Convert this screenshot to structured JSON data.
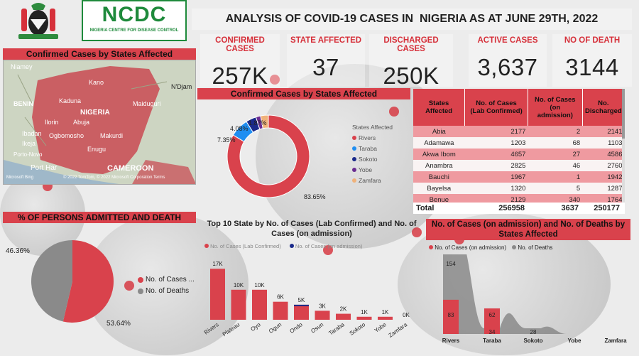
{
  "header": {
    "title": "ANALYSIS OF COVID-19 CASES IN  NIGERIA AS AT JUNE 29TH, 2022",
    "logo_text": "NCDC",
    "logo_subtitle": "NIGERIA CENTRE FOR DISEASE CONTROL"
  },
  "kpis": [
    {
      "label": "CONFIRMED CASES",
      "value": "257K"
    },
    {
      "label": "STATE AFFECTED",
      "value": "37"
    },
    {
      "label": "DISCHARGED CASES",
      "value": "250K"
    },
    {
      "label": "ACTIVE CASES",
      "value": "3,637"
    },
    {
      "label": "NO OF DEATH",
      "value": "3144"
    }
  ],
  "map": {
    "title": "Confirmed Cases by States Affected",
    "labels": [
      "Niamey",
      "BENIN",
      "Kano",
      "N'Djam",
      "Kaduna",
      "Maiduguri",
      "NIGERIA",
      "Abuja",
      "Ilorin",
      "Ogbomosho",
      "Makurdi",
      "Ibadan",
      "Ikeja",
      "Porto-Novo",
      "Enugu",
      "Port Har",
      "CAMEROON"
    ],
    "credit": "Microsoft Bing",
    "copyright": "© 2022 TomTom, © 2022 Microsoft Corporation Terms"
  },
  "donut": {
    "title": "Confirmed Cases by States Affected",
    "legend_title": "States Affected",
    "pct_labels": [
      "83.65%",
      "7.35%",
      "4.08%",
      "1.87%"
    ],
    "colors": {
      "Rivers": "#d9424c",
      "Taraba": "#1f8ef1",
      "Sokoto": "#1a2a8a",
      "Yobe": "#6a2c91",
      "Zamfara": "#f0b27a"
    }
  },
  "table": {
    "headers": [
      "States\nAffected",
      "No. of Cases\n(Lab Confirmed)",
      "No. of Cases\n(on\nadmission)",
      "No.\nDischarged"
    ],
    "rows": [
      [
        "Abia",
        "2177",
        "2",
        "2141"
      ],
      [
        "Adamawa",
        "1203",
        "68",
        "1103"
      ],
      [
        "Akwa Ibom",
        "4657",
        "27",
        "4586"
      ],
      [
        "Anambra",
        "2825",
        "46",
        "2760"
      ],
      [
        "Bauchi",
        "1967",
        "1",
        "1942"
      ],
      [
        "Bayelsa",
        "1320",
        "5",
        "1287"
      ],
      [
        "Benue",
        "2129",
        "340",
        "1764"
      ]
    ],
    "total": [
      "Total",
      "256958",
      "3637",
      "250177"
    ]
  },
  "pie": {
    "title": "% OF PERSONS ADMITTED AND DEATH",
    "pct_labels": [
      "46.36%",
      "53.64%"
    ],
    "legend": [
      "No. of Cases ...",
      "No. of Deaths"
    ]
  },
  "bar": {
    "title": "Top 10 State by No. of Cases (Lab Confirmed) and No. of Cases (on admission)",
    "legend": [
      "No. of Cases (Lab Confirmed)",
      "No. of Cases (on admission)"
    ],
    "value_labels": [
      "17K",
      "10K",
      "10K",
      "6K",
      "5K",
      "3K",
      "2K",
      "1K",
      "1K",
      "0K"
    ]
  },
  "ribbon": {
    "title": "No. of Cases (on admission) and No. of Deaths by States Affected",
    "legend": [
      "No. of Cases (on admission)",
      "No. of Deaths"
    ],
    "value_labels": [
      "154",
      "83",
      "62",
      "34",
      "28"
    ]
  },
  "chart_data": [
    {
      "type": "pie",
      "title": "Confirmed Cases by States Affected",
      "legend_title": "States Affected",
      "categories": [
        "Rivers",
        "Taraba",
        "Sokoto",
        "Yobe",
        "Zamfara"
      ],
      "values": [
        83.65,
        7.35,
        4.08,
        1.87,
        3.05
      ],
      "colors": [
        "#d9424c",
        "#1f8ef1",
        "#1a2a8a",
        "#6a2c91",
        "#f0b27a"
      ],
      "donut": true
    },
    {
      "type": "pie",
      "title": "% OF PERSONS ADMITTED AND DEATH",
      "categories": [
        "No. of Cases ...",
        "No. of Deaths"
      ],
      "values": [
        53.64,
        46.36
      ],
      "colors": [
        "#d9424c",
        "#8a8a8a"
      ]
    },
    {
      "type": "bar",
      "title": "Top 10 State by No. of Cases (Lab Confirmed) and No. of Cases (on admission)",
      "categories": [
        "Rivers",
        "Plateau",
        "Oyo",
        "Ogun",
        "Ondo",
        "Osun",
        "Taraba",
        "Sokoto",
        "Yobe",
        "Zamfara"
      ],
      "series": [
        {
          "name": "No. of Cases (Lab Confirmed)",
          "values": [
            17000,
            10000,
            10000,
            6000,
            5000,
            3000,
            2000,
            1000,
            1000,
            0
          ],
          "color": "#d9424c"
        },
        {
          "name": "No. of Cases (on admission)",
          "values": [
            0,
            0,
            0,
            0,
            300,
            0,
            0,
            0,
            0,
            0
          ],
          "color": "#1a2a8a"
        }
      ],
      "ylim": [
        0,
        18000
      ]
    },
    {
      "type": "area",
      "title": "No. of Cases (on admission) and No. of Deaths by States Affected",
      "categories": [
        "Rivers",
        "Taraba",
        "Sokoto",
        "Yobe",
        "Zamfara"
      ],
      "series": [
        {
          "name": "No. of Cases (on admission)",
          "values": [
            83,
            62,
            0,
            0,
            0
          ],
          "color": "#d9424c"
        },
        {
          "name": "No. of Deaths",
          "values": [
            154,
            34,
            28,
            0,
            0
          ],
          "color": "#8a8a8a"
        }
      ]
    }
  ]
}
